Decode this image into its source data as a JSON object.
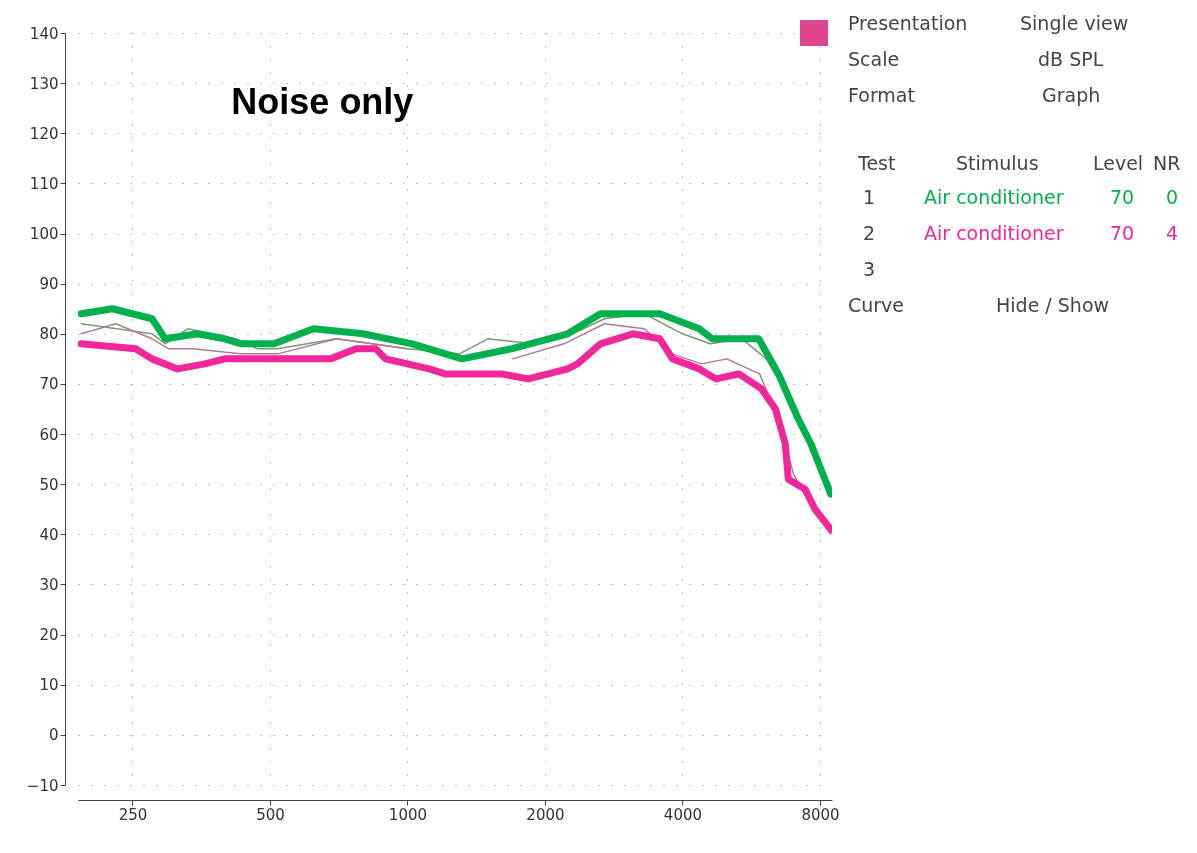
{
  "chart_data": {
    "type": "line",
    "title": "Noise only",
    "annotations": [
      "Presentation",
      "Single view",
      "Scale",
      "dB SPL",
      "Format",
      "Graph",
      "Test",
      "Stimulus",
      "Level",
      "NR",
      "1",
      "70",
      "0",
      "2",
      "70",
      "4",
      "3",
      "Curve",
      "Hide / Show"
    ],
    "xlim": [
      190,
      8500
    ],
    "xticks": [
      250,
      500,
      1000,
      2000,
      4000,
      8000
    ],
    "log": "x",
    "ylim": [
      -10,
      140
    ],
    "yticks": [
      -10,
      0,
      10,
      20,
      30,
      40,
      50,
      60,
      70,
      80,
      90,
      100,
      110,
      120,
      130,
      140
    ],
    "grid": true,
    "line_style": "solid",
    "series": [
      {
        "color": "#7a9a70",
        "x": [
          193,
          276,
          295,
          330,
          420,
          470,
          520,
          700,
          1000,
          1300,
          1500,
          1900,
          2300,
          2700,
          3300,
          4000,
          4600,
          5400,
          6100,
          7000,
          7800,
          8450
        ],
        "values": [
          82,
          80,
          78,
          81,
          79,
          77,
          77,
          79,
          77,
          76,
          79,
          78,
          80,
          83,
          84,
          80,
          78,
          79,
          75,
          66,
          55,
          48
        ]
      },
      {
        "color": "#b07a90",
        "x": [
          193,
          230,
          276,
          300,
          340,
          430,
          520,
          700,
          1000,
          1300,
          1700,
          2200,
          2700,
          3300,
          3800,
          4400,
          5000,
          5900,
          6500,
          7000,
          7600,
          8450
        ],
        "values": [
          80,
          82,
          79,
          77,
          77,
          76,
          76,
          79,
          77,
          null,
          75,
          78,
          82,
          81,
          76,
          74,
          75,
          72,
          63,
          52,
          46,
          40
        ]
      },
      {
        "name": "Air conditioner",
        "color": "#00b04f",
        "x": [
          193,
          226,
          276,
          295,
          347,
          398,
          433,
          510,
          623,
          799,
          1025,
          1316,
          1688,
          2243,
          2645,
          3567,
          4353,
          4646,
          5873,
          6489,
          7170,
          7648,
          8450
        ],
        "values": [
          84,
          85,
          83,
          79,
          80,
          79,
          78,
          78,
          81,
          80,
          78,
          75,
          77,
          80,
          84,
          84,
          81,
          79,
          79,
          72,
          63,
          58,
          48
        ]
      },
      {
        "name": "Air conditioner",
        "color": "#f0269b",
        "x": [
          193,
          254,
          276,
          314,
          360,
          398,
          528,
          678,
          772,
          853,
          896,
          1116,
          1208,
          1606,
          1838,
          2243,
          2357,
          2645,
          3117,
          3567,
          3805,
          4353,
          4740,
          5315,
          5962,
          6392,
          6718,
          6820,
          7424,
          7803,
          8450
        ],
        "values": [
          78,
          77,
          75,
          73,
          74,
          75,
          75,
          75,
          77,
          77,
          75,
          73,
          72,
          72,
          71,
          73,
          74,
          78,
          80,
          79,
          75,
          73,
          71,
          72,
          69,
          65,
          58,
          51,
          49,
          45,
          41
        ]
      }
    ]
  }
}
